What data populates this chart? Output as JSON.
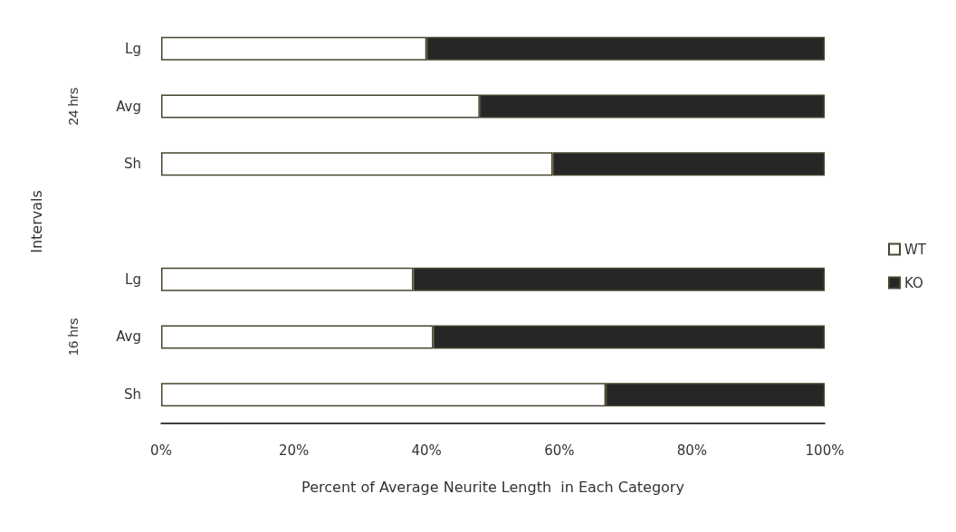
{
  "chart_data": {
    "type": "bar",
    "orientation": "horizontal",
    "stacked": true,
    "categories": [
      "Lg",
      "Avg",
      "Sh",
      null,
      "Lg",
      "Avg",
      "Sh"
    ],
    "series": [
      {
        "name": "WT",
        "color": "#ffffff",
        "values": [
          40,
          48,
          59,
          null,
          38,
          41,
          67
        ]
      },
      {
        "name": "KO",
        "color": "#262626",
        "values": [
          60,
          52,
          41,
          null,
          62,
          59,
          33
        ]
      }
    ],
    "xlim": [
      0,
      100
    ],
    "xticks": [
      {
        "value": 0,
        "label": "0%"
      },
      {
        "value": 20,
        "label": "20%"
      },
      {
        "value": 40,
        "label": "40%"
      },
      {
        "value": 60,
        "label": "60%"
      },
      {
        "value": 80,
        "label": "80%"
      },
      {
        "value": 100,
        "label": "100%"
      }
    ],
    "xlabel": "Percent of Average Neurite Length  in Each Category",
    "ylabel": "Intervals",
    "annotations": [
      "24 hrs",
      "16 hrs"
    ],
    "grid": false,
    "legend": "right"
  }
}
